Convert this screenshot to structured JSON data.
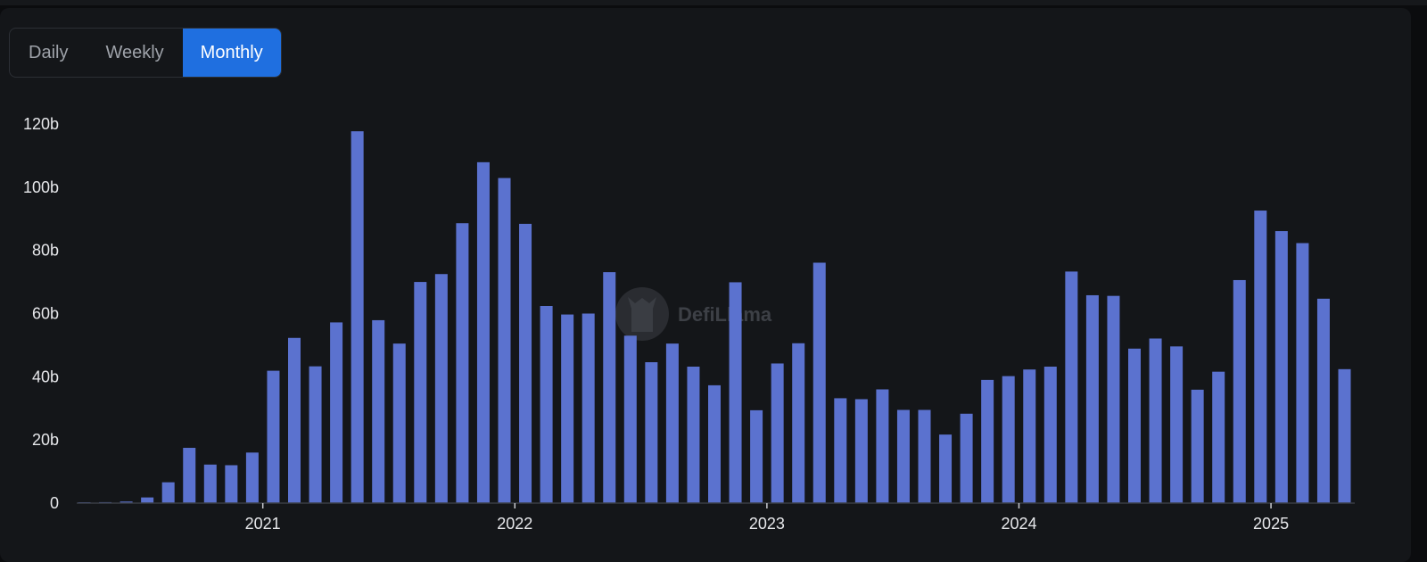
{
  "tabs": [
    {
      "label": "Daily",
      "active": false
    },
    {
      "label": "Weekly",
      "active": false
    },
    {
      "label": "Monthly",
      "active": true
    }
  ],
  "watermark": "DefiLlama",
  "colors": {
    "bar": "#5b72cf",
    "accent": "#1f6fe0"
  },
  "chart_data": {
    "type": "bar",
    "title": "",
    "xlabel": "",
    "ylabel": "",
    "ylim": [
      0,
      120
    ],
    "y_unit": "b",
    "y_ticks": [
      0,
      20,
      40,
      60,
      80,
      100,
      120
    ],
    "y_tick_labels": [
      "0",
      "20b",
      "40b",
      "60b",
      "80b",
      "100b",
      "120b"
    ],
    "x_tick_labels": [
      "2021",
      "2022",
      "2023",
      "2024",
      "2025"
    ],
    "grid": false,
    "legend": "none",
    "categories": [
      "2020-04",
      "2020-05",
      "2020-06",
      "2020-07",
      "2020-08",
      "2020-09",
      "2020-10",
      "2020-11",
      "2020-12",
      "2021-01",
      "2021-02",
      "2021-03",
      "2021-04",
      "2021-05",
      "2021-06",
      "2021-07",
      "2021-08",
      "2021-09",
      "2021-10",
      "2021-11",
      "2021-12",
      "2022-01",
      "2022-02",
      "2022-03",
      "2022-04",
      "2022-05",
      "2022-06",
      "2022-07",
      "2022-08",
      "2022-09",
      "2022-10",
      "2022-11",
      "2022-12",
      "2023-01",
      "2023-02",
      "2023-03",
      "2023-04",
      "2023-05",
      "2023-06",
      "2023-07",
      "2023-08",
      "2023-09",
      "2023-10",
      "2023-11",
      "2023-12",
      "2024-01",
      "2024-02",
      "2024-03",
      "2024-04",
      "2024-05",
      "2024-06",
      "2024-07",
      "2024-08",
      "2024-09",
      "2024-10",
      "2024-11",
      "2024-12",
      "2025-01",
      "2025-02",
      "2025-03",
      "2025-04"
    ],
    "values": [
      0.2,
      0.3,
      0.5,
      1.8,
      6.6,
      17.5,
      12.2,
      12.0,
      16.0,
      41.9,
      52.3,
      43.3,
      57.2,
      117.7,
      57.9,
      50.5,
      70.0,
      72.5,
      88.6,
      107.9,
      102.9,
      88.4,
      62.4,
      59.7,
      60.0,
      73.1,
      53.0,
      44.6,
      50.5,
      43.2,
      37.3,
      69.9,
      29.4,
      44.2,
      50.6,
      76.1,
      33.2,
      32.9,
      36.0,
      29.5,
      29.5,
      21.7,
      28.3,
      39.0,
      40.2,
      42.3,
      43.2,
      73.3,
      65.8,
      65.6,
      48.9,
      52.1,
      49.6,
      35.9,
      41.6,
      70.6,
      92.6,
      86.1,
      82.3,
      64.7,
      42.4
    ]
  }
}
